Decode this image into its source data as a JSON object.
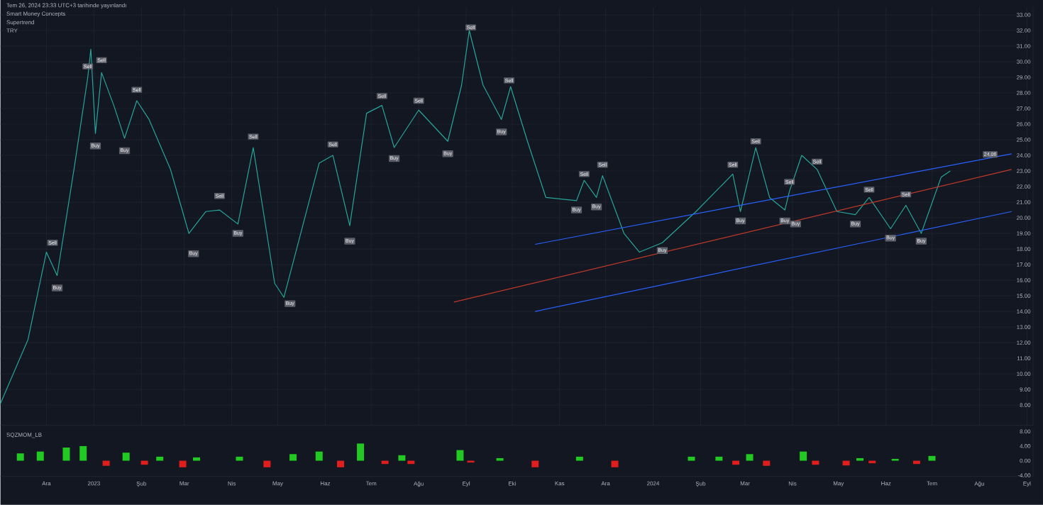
{
  "chart_data": [
    {
      "type": "line",
      "tick_labels": "y",
      "grid": true,
      "annotations": [
        "Tem 26, 2024 23:33 UTC+3 tarihinde yayınlandı",
        "Smart Money Concepts",
        "Supertrend",
        "TRY",
        {
          "text": "24,06",
          "x": "2024-08-08",
          "y": 24.06
        },
        {
          "text": "Sell",
          "x": "2022-12-05",
          "y": 18.4
        },
        {
          "text": "Buy",
          "x": "2022-12-08",
          "y": 15.5
        },
        {
          "text": "Sell",
          "x": "2022-12-28",
          "y": 29.7
        },
        {
          "text": "Buy",
          "x": "2023-01-02",
          "y": 24.6
        },
        {
          "text": "Sell",
          "x": "2023-01-06",
          "y": 30.1
        },
        {
          "text": "Buy",
          "x": "2023-01-21",
          "y": 24.3
        },
        {
          "text": "Sell",
          "x": "2023-01-29",
          "y": 28.2
        },
        {
          "text": "Buy",
          "x": "2023-03-07",
          "y": 17.7
        },
        {
          "text": "Sell",
          "x": "2023-03-24",
          "y": 21.4
        },
        {
          "text": "Buy",
          "x": "2023-04-05",
          "y": 19.0
        },
        {
          "text": "Sell",
          "x": "2023-04-15",
          "y": 25.2
        },
        {
          "text": "Buy",
          "x": "2023-05-09",
          "y": 14.5
        },
        {
          "text": "Sell",
          "x": "2023-06-06",
          "y": 24.7
        },
        {
          "text": "Buy",
          "x": "2023-06-17",
          "y": 18.5
        },
        {
          "text": "Sell",
          "x": "2023-07-08",
          "y": 27.8
        },
        {
          "text": "Buy",
          "x": "2023-07-16",
          "y": 23.8
        },
        {
          "text": "Sell",
          "x": "2023-08-01",
          "y": 27.5
        },
        {
          "text": "Buy",
          "x": "2023-08-20",
          "y": 24.1
        },
        {
          "text": "Sell",
          "x": "2023-09-04",
          "y": 32.2
        },
        {
          "text": "Buy",
          "x": "2023-09-24",
          "y": 25.5
        },
        {
          "text": "Sell",
          "x": "2023-09-29",
          "y": 28.8
        },
        {
          "text": "Buy",
          "x": "2023-11-12",
          "y": 20.5
        },
        {
          "text": "Sell",
          "x": "2023-11-17",
          "y": 22.8
        },
        {
          "text": "Buy",
          "x": "2023-11-25",
          "y": 20.7
        },
        {
          "text": "Sell",
          "x": "2023-11-29",
          "y": 23.4
        },
        {
          "text": "Buy",
          "x": "2024-01-07",
          "y": 17.9
        },
        {
          "text": "Sell",
          "x": "2024-02-22",
          "y": 23.4
        },
        {
          "text": "Buy",
          "x": "2024-02-27",
          "y": 19.8
        },
        {
          "text": "Sell",
          "x": "2024-03-08",
          "y": 24.9
        },
        {
          "text": "Buy",
          "x": "2024-03-27",
          "y": 19.8
        },
        {
          "text": "Sell",
          "x": "2024-03-30",
          "y": 22.3
        },
        {
          "text": "Buy",
          "x": "2024-04-03",
          "y": 19.6
        },
        {
          "text": "Sell",
          "x": "2024-04-17",
          "y": 23.6
        },
        {
          "text": "Buy",
          "x": "2024-05-12",
          "y": 19.6
        },
        {
          "text": "Sell",
          "x": "2024-05-21",
          "y": 21.8
        },
        {
          "text": "Buy",
          "x": "2024-06-04",
          "y": 18.7
        },
        {
          "text": "Sell",
          "x": "2024-06-14",
          "y": 21.5
        },
        {
          "text": "Buy",
          "x": "2024-06-24",
          "y": 18.5
        }
      ],
      "xlim": [
        "2022-11-01",
        "2024-09-05"
      ],
      "xticks": [
        {
          "value": "2022-12-01",
          "label": null
        },
        {
          "value": "2023-01-01",
          "label": null
        },
        {
          "value": "2023-02-01",
          "label": null
        },
        {
          "value": "2023-03-01",
          "label": null
        },
        {
          "value": "2023-04-01",
          "label": null
        },
        {
          "value": "2023-05-01",
          "label": null
        },
        {
          "value": "2023-06-01",
          "label": null
        },
        {
          "value": "2023-07-01",
          "label": null
        },
        {
          "value": "2023-08-01",
          "label": null
        },
        {
          "value": "2023-09-01",
          "label": null
        },
        {
          "value": "2023-10-01",
          "label": null
        },
        {
          "value": "2023-11-01",
          "label": null
        },
        {
          "value": "2023-12-01",
          "label": null
        },
        {
          "value": "2024-01-01",
          "label": null
        },
        {
          "value": "2024-02-01",
          "label": null
        },
        {
          "value": "2024-03-01",
          "label": null
        },
        {
          "value": "2024-04-01",
          "label": null
        },
        {
          "value": "2024-05-01",
          "label": null
        },
        {
          "value": "2024-06-01",
          "label": null
        },
        {
          "value": "2024-07-01",
          "label": null
        },
        {
          "value": "2024-08-01",
          "label": null
        },
        {
          "value": "2024-09-01",
          "label": null
        }
      ],
      "ylim": [
        6.7,
        33.5
      ],
      "yticks": [
        {
          "value": 8,
          "label": "8.00"
        },
        {
          "value": 9,
          "label": "9.00"
        },
        {
          "value": 10,
          "label": "10.00"
        },
        {
          "value": 11,
          "label": "11.00"
        },
        {
          "value": 12,
          "label": "12.00"
        },
        {
          "value": 13,
          "label": "13.00"
        },
        {
          "value": 14,
          "label": "14.00"
        },
        {
          "value": 15,
          "label": "15.00"
        },
        {
          "value": 16,
          "label": "16.00"
        },
        {
          "value": 17,
          "label": "17.00"
        },
        {
          "value": 18,
          "label": "18.00"
        },
        {
          "value": 19,
          "label": "19.00"
        },
        {
          "value": 20,
          "label": "20.00"
        },
        {
          "value": 21,
          "label": "21.00"
        },
        {
          "value": 22,
          "label": "22.00"
        },
        {
          "value": 23,
          "label": "23.00"
        },
        {
          "value": 24,
          "label": "24.00"
        },
        {
          "value": 25,
          "label": "25.00"
        },
        {
          "value": 26,
          "label": "26.00"
        },
        {
          "value": 27,
          "label": "27.00"
        },
        {
          "value": 28,
          "label": "28.00"
        },
        {
          "value": 29,
          "label": "29.00"
        },
        {
          "value": 30,
          "label": "30.00"
        },
        {
          "value": 31,
          "label": "31.00"
        },
        {
          "value": 32,
          "label": "32.00"
        },
        {
          "value": 33,
          "label": "33.00"
        }
      ],
      "series": [
        {
          "color": "#26a69a",
          "x": [
            "2022-11-01",
            "2022-11-19",
            "2022-12-01",
            "2022-12-08",
            "2022-12-19",
            "2022-12-28",
            "2022-12-30",
            "2023-01-02",
            "2023-01-06",
            "2023-01-14",
            "2023-01-21",
            "2023-01-29",
            "2023-02-06",
            "2023-02-20",
            "2023-03-04",
            "2023-03-15",
            "2023-03-24",
            "2023-04-05",
            "2023-04-15",
            "2023-04-29",
            "2023-05-05",
            "2023-05-16",
            "2023-05-28",
            "2023-06-06",
            "2023-06-17",
            "2023-06-28",
            "2023-07-08",
            "2023-07-16",
            "2023-08-01",
            "2023-08-20",
            "2023-08-29",
            "2023-09-03",
            "2023-09-12",
            "2023-09-24",
            "2023-09-30",
            "2023-10-11",
            "2023-10-23",
            "2023-11-12",
            "2023-11-17",
            "2023-11-25",
            "2023-11-29",
            "2023-12-13",
            "2023-12-23",
            "2024-01-07",
            "2024-01-29",
            "2024-02-11",
            "2024-02-22",
            "2024-02-27",
            "2024-03-08",
            "2024-03-17",
            "2024-03-27",
            "2024-03-30",
            "2024-04-07",
            "2024-04-17",
            "2024-04-30",
            "2024-05-12",
            "2024-05-21",
            "2024-06-04",
            "2024-06-14",
            "2024-06-24",
            "2024-07-07",
            "2024-07-13"
          ],
          "values": [
            8.1,
            12.2,
            17.8,
            16.3,
            23.1,
            29.0,
            30.8,
            25.4,
            29.3,
            27.2,
            25.1,
            27.5,
            26.3,
            23.1,
            19.0,
            20.4,
            20.5,
            19.6,
            24.5,
            15.8,
            14.9,
            19.0,
            23.5,
            24.0,
            19.5,
            26.7,
            27.2,
            24.5,
            26.9,
            24.9,
            28.5,
            32.0,
            28.5,
            26.3,
            28.4,
            24.9,
            21.3,
            21.1,
            22.4,
            21.3,
            22.7,
            19.0,
            17.8,
            18.4,
            20.4,
            21.7,
            22.8,
            20.4,
            24.5,
            21.3,
            20.5,
            21.7,
            24.0,
            23.1,
            20.4,
            20.2,
            21.3,
            19.3,
            20.8,
            19.0,
            22.6,
            23.0
          ]
        },
        {
          "type": "line",
          "color": "#c0392b",
          "x": [
            "2023-08-24",
            "2024-08-22"
          ],
          "values": [
            14.6,
            23.1
          ]
        },
        {
          "type": "line",
          "color": "#2962ff",
          "x": [
            "2023-10-16",
            "2024-08-22"
          ],
          "values": [
            18.3,
            24.1
          ]
        },
        {
          "type": "line",
          "color": "#2962ff",
          "x": [
            "2023-10-16",
            "2024-08-22"
          ],
          "values": [
            14.0,
            20.4
          ]
        }
      ]
    },
    {
      "type": "bar",
      "annotations": [
        "SQZMOM_LB"
      ],
      "xlim": [
        "2022-11-01",
        "2024-09-05"
      ],
      "xticks": [
        {
          "value": "2022-12-01",
          "label": "Ara"
        },
        {
          "value": "2023-01-01",
          "label": "2023"
        },
        {
          "value": "2023-02-01",
          "label": "Şub"
        },
        {
          "value": "2023-03-01",
          "label": "Mar"
        },
        {
          "value": "2023-04-01",
          "label": "Nis"
        },
        {
          "value": "2023-05-01",
          "label": "May"
        },
        {
          "value": "2023-06-01",
          "label": "Haz"
        },
        {
          "value": "2023-07-01",
          "label": "Tem"
        },
        {
          "value": "2023-08-01",
          "label": "Ağu"
        },
        {
          "value": "2023-09-01",
          "label": "Eyl"
        },
        {
          "value": "2023-10-01",
          "label": "Eki"
        },
        {
          "value": "2023-11-01",
          "label": "Kas"
        },
        {
          "value": "2023-12-01",
          "label": "Ara"
        },
        {
          "value": "2024-01-01",
          "label": "2024"
        },
        {
          "value": "2024-02-01",
          "label": "Şub"
        },
        {
          "value": "2024-03-01",
          "label": "Mar"
        },
        {
          "value": "2024-04-01",
          "label": "Nis"
        },
        {
          "value": "2024-05-01",
          "label": "May"
        },
        {
          "value": "2024-06-01",
          "label": "Haz"
        },
        {
          "value": "2024-07-01",
          "label": "Tem"
        },
        {
          "value": "2024-08-01",
          "label": "Ağu"
        },
        {
          "value": "2024-09-01",
          "label": "Eyl"
        }
      ],
      "ylim": [
        -4.3,
        8.5
      ],
      "yticks": [
        {
          "value": 8,
          "label": "8.00"
        },
        {
          "value": 4,
          "label": "4.00"
        },
        {
          "value": 0,
          "label": "0.00"
        },
        {
          "value": -4,
          "label": "-4.00"
        }
      ],
      "x": [
        "2022-11-14",
        "2022-11-27",
        "2022-12-14",
        "2022-12-25",
        "2023-01-09",
        "2023-01-22",
        "2023-02-03",
        "2023-02-13",
        "2023-02-28",
        "2023-03-09",
        "2023-04-06",
        "2023-04-24",
        "2023-05-11",
        "2023-05-28",
        "2023-06-11",
        "2023-06-24",
        "2023-07-10",
        "2023-07-21",
        "2023-07-27",
        "2023-08-28",
        "2023-09-04",
        "2023-09-23",
        "2023-10-16",
        "2023-11-14",
        "2023-12-07",
        "2024-01-26",
        "2024-02-13",
        "2024-02-24",
        "2024-03-04",
        "2024-03-15",
        "2024-04-08",
        "2024-04-16",
        "2024-05-06",
        "2024-05-15",
        "2024-05-23",
        "2024-06-07",
        "2024-06-21",
        "2024-07-01"
      ],
      "values": [
        2.0,
        2.5,
        3.6,
        4.0,
        -1.4,
        2.2,
        -1.1,
        1.1,
        -1.8,
        0.9,
        1.1,
        -1.8,
        1.8,
        2.5,
        -1.8,
        4.7,
        -0.9,
        1.5,
        -0.9,
        2.9,
        -0.5,
        0.7,
        -1.8,
        1.1,
        -1.8,
        1.1,
        1.1,
        -1.1,
        1.8,
        -1.4,
        2.5,
        -1.1,
        -1.3,
        0.7,
        -0.7,
        0.5,
        -0.9,
        1.3
      ],
      "colors": [
        "#22c922",
        "#22c922",
        "#22c922",
        "#22c922",
        "#e01e1e",
        "#22c922",
        "#e01e1e",
        "#22c922",
        "#e01e1e",
        "#22c922",
        "#22c922",
        "#e01e1e",
        "#22c922",
        "#22c922",
        "#e01e1e",
        "#22c922",
        "#e01e1e",
        "#22c922",
        "#e01e1e",
        "#22c922",
        "#e01e1e",
        "#22c922",
        "#e01e1e",
        "#22c922",
        "#e01e1e",
        "#22c922",
        "#22c922",
        "#e01e1e",
        "#22c922",
        "#e01e1e",
        "#22c922",
        "#e01e1e",
        "#e01e1e",
        "#22c922",
        "#e01e1e",
        "#22c922",
        "#e01e1e",
        "#22c922"
      ]
    }
  ]
}
